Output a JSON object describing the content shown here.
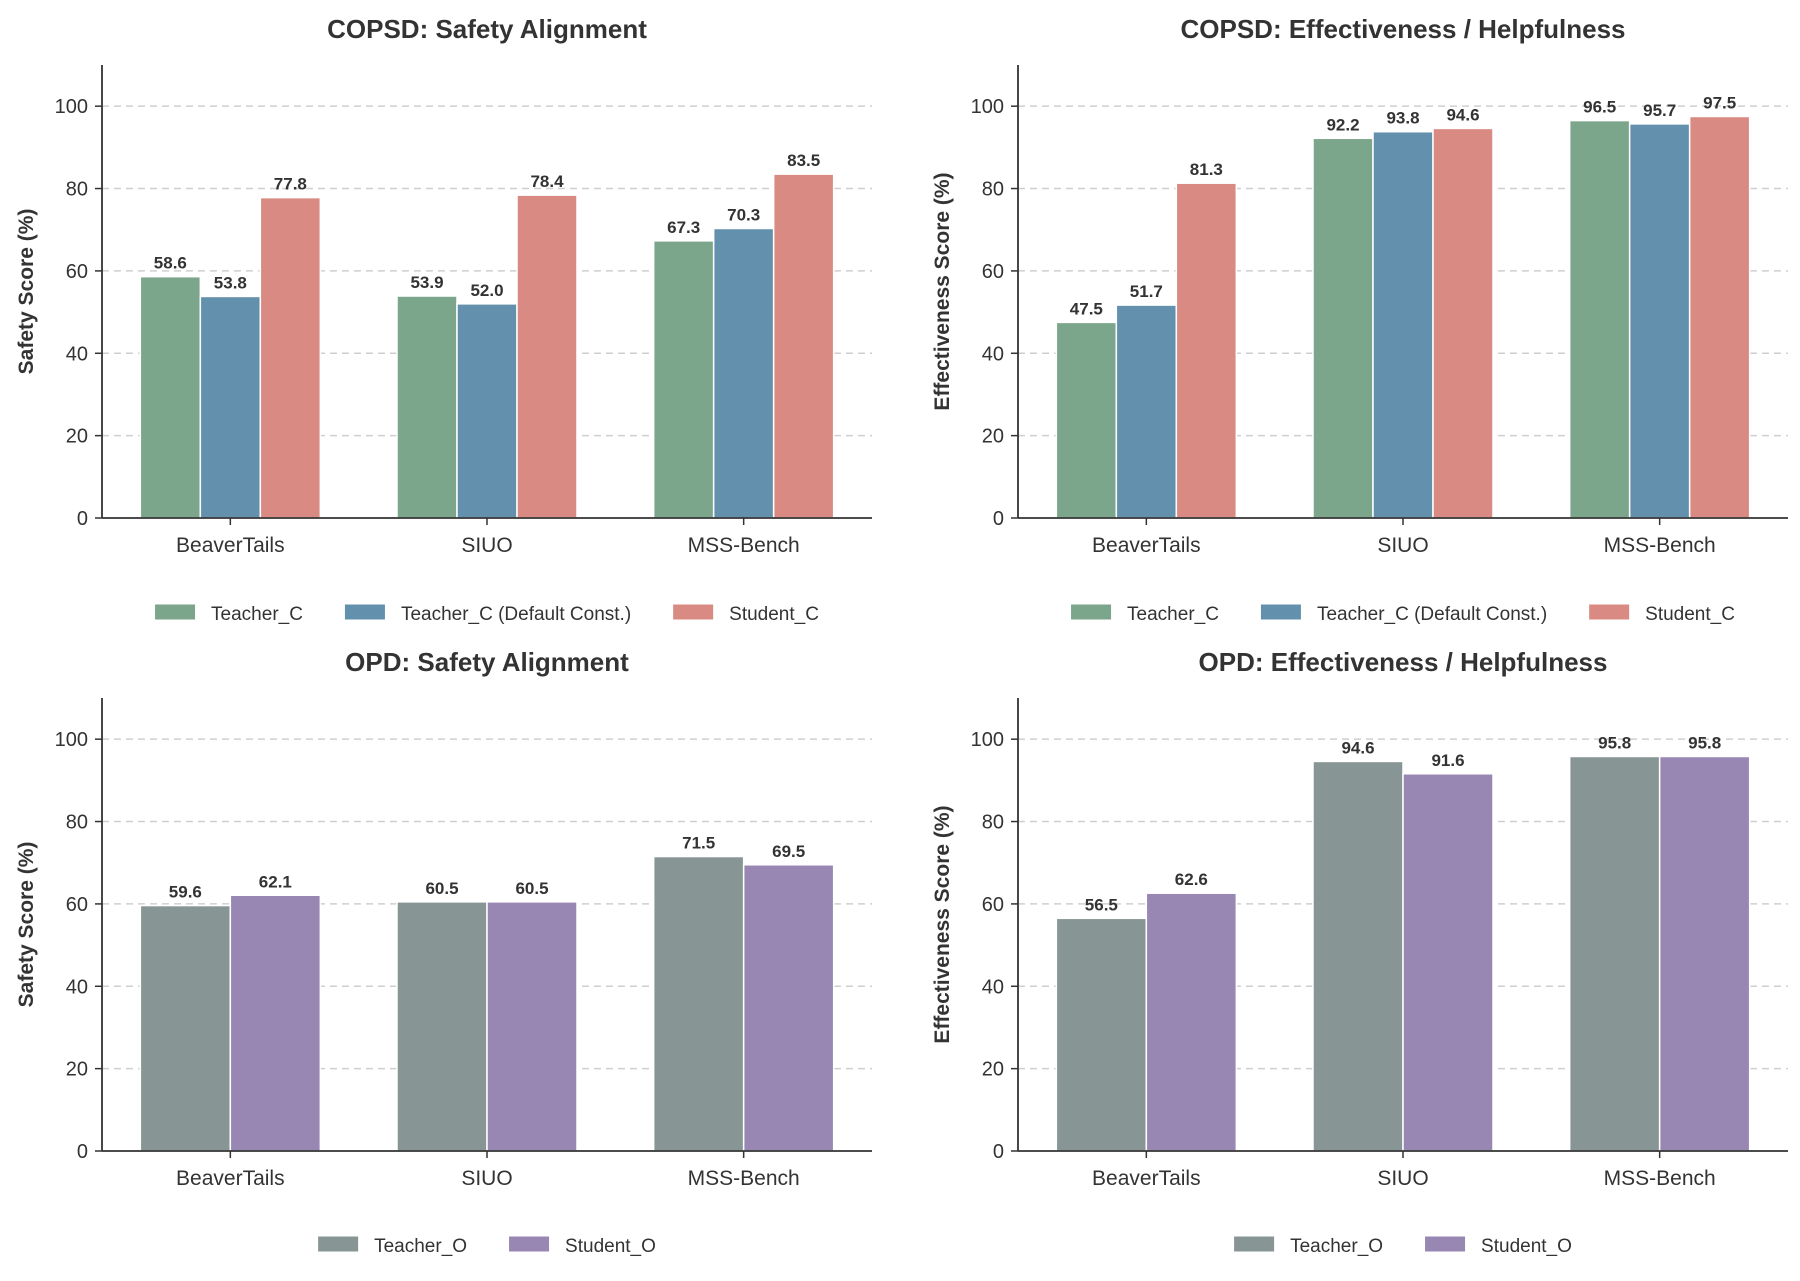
{
  "chart_data": [
    {
      "type": "bar",
      "title": "COPSD: Safety Alignment",
      "ylabel": "Safety Score (%)",
      "xlabel": "",
      "ylim": [
        0,
        110
      ],
      "yticks": [
        0,
        20,
        40,
        60,
        80,
        100
      ],
      "grid": "y-dashed",
      "legend_position": "bottom-center",
      "categories": [
        "BeaverTails",
        "SIUO",
        "MSS-Bench"
      ],
      "series": [
        {
          "name": "Teacher_C",
          "color": "#7ba68b",
          "values": [
            58.6,
            53.9,
            67.3
          ],
          "labels": [
            "58.6",
            "53.9",
            "67.3"
          ]
        },
        {
          "name": "Teacher_C (Default Const.)",
          "color": "#6390ad",
          "values": [
            53.8,
            52.0,
            70.3
          ],
          "labels": [
            "53.8",
            "52.0",
            "70.3"
          ]
        },
        {
          "name": "Student_C",
          "color": "#d98a82",
          "values": [
            77.8,
            78.4,
            83.5
          ],
          "labels": [
            "77.8",
            "78.4",
            "83.5"
          ]
        }
      ]
    },
    {
      "type": "bar",
      "title": "COPSD: Effectiveness / Helpfulness",
      "ylabel": "Effectiveness Score (%)",
      "xlabel": "",
      "ylim": [
        0,
        110
      ],
      "yticks": [
        0,
        20,
        40,
        60,
        80,
        100
      ],
      "grid": "y-dashed",
      "legend_position": "bottom-center",
      "categories": [
        "BeaverTails",
        "SIUO",
        "MSS-Bench"
      ],
      "series": [
        {
          "name": "Teacher_C",
          "color": "#7ba68b",
          "values": [
            47.5,
            92.2,
            96.5
          ],
          "labels": [
            "47.5",
            "92.2",
            "96.5"
          ]
        },
        {
          "name": "Teacher_C (Default Const.)",
          "color": "#6390ad",
          "values": [
            51.7,
            93.8,
            95.7
          ],
          "labels": [
            "51.7",
            "93.8",
            "95.7"
          ]
        },
        {
          "name": "Student_C",
          "color": "#d98a82",
          "values": [
            81.3,
            94.6,
            97.5
          ],
          "labels": [
            "81.3",
            "94.6",
            "97.5"
          ]
        }
      ]
    },
    {
      "type": "bar",
      "title": "OPD: Safety Alignment",
      "ylabel": "Safety Score (%)",
      "xlabel": "",
      "ylim": [
        0,
        110
      ],
      "yticks": [
        0,
        20,
        40,
        60,
        80,
        100
      ],
      "grid": "y-dashed",
      "legend_position": "bottom-center",
      "categories": [
        "BeaverTails",
        "SIUO",
        "MSS-Bench"
      ],
      "series": [
        {
          "name": "Teacher_O",
          "color": "#879594",
          "values": [
            59.6,
            60.5,
            71.5
          ],
          "labels": [
            "59.6",
            "60.5",
            "71.5"
          ]
        },
        {
          "name": "Student_O",
          "color": "#9886b3",
          "values": [
            62.1,
            60.5,
            69.5
          ],
          "labels": [
            "62.1",
            "60.5",
            "69.5"
          ]
        }
      ]
    },
    {
      "type": "bar",
      "title": "OPD: Effectiveness / Helpfulness",
      "ylabel": "Effectiveness Score (%)",
      "xlabel": "",
      "ylim": [
        0,
        110
      ],
      "yticks": [
        0,
        20,
        40,
        60,
        80,
        100
      ],
      "grid": "y-dashed",
      "legend_position": "bottom-center",
      "categories": [
        "BeaverTails",
        "SIUO",
        "MSS-Bench"
      ],
      "series": [
        {
          "name": "Teacher_O",
          "color": "#879594",
          "values": [
            56.5,
            94.6,
            95.8
          ],
          "labels": [
            "56.5",
            "94.6",
            "95.8"
          ]
        },
        {
          "name": "Student_O",
          "color": "#9886b3",
          "values": [
            62.6,
            91.6,
            95.8
          ],
          "labels": [
            "62.6",
            "91.6",
            "95.8"
          ]
        }
      ]
    }
  ]
}
